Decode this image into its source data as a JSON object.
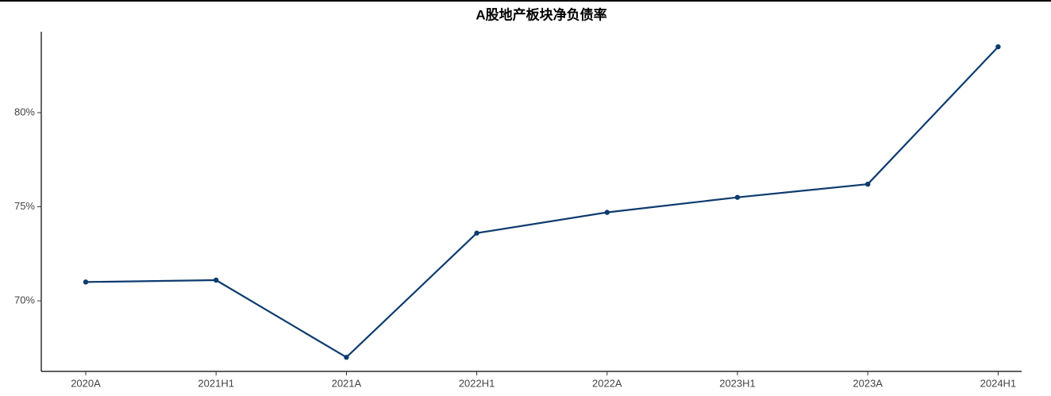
{
  "chart_data": {
    "type": "line",
    "title": "A股地产板块净负债率",
    "categories": [
      "2020A",
      "2021H1",
      "2021A",
      "2022H1",
      "2022A",
      "2023H1",
      "2023A",
      "2024H1"
    ],
    "series": [
      {
        "name": "净负债率",
        "color": "#0d3b6e",
        "values": [
          71.0,
          71.1,
          67.0,
          73.6,
          74.7,
          75.5,
          76.2,
          83.5
        ]
      }
    ],
    "ylim": [
      66.25,
      84.3
    ],
    "yticks": [
      {
        "value": 70,
        "label": "70%"
      },
      {
        "value": 75,
        "label": "75%"
      },
      {
        "value": 80,
        "label": "80%"
      }
    ],
    "grid": false
  }
}
